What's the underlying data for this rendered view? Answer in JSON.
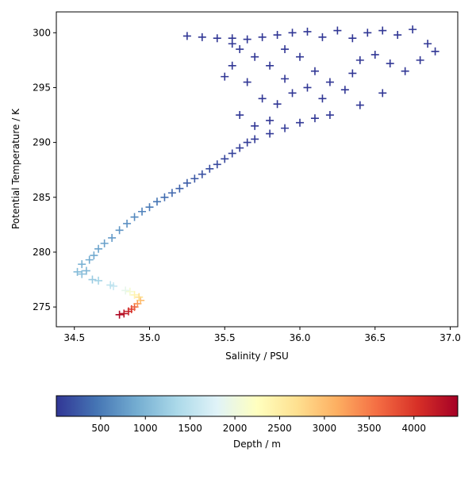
{
  "chart_data": {
    "type": "scatter",
    "marker": "+",
    "colormap": "RdYlBu_r",
    "xlabel": "Salinity / PSU",
    "ylabel": "Potential Temperature / K",
    "colorbar_label": "Depth / m",
    "xlim": [
      34.38,
      37.05
    ],
    "ylim": [
      273.2,
      301.9
    ],
    "clim": [
      5,
      4490
    ],
    "xticks": [
      34.5,
      {
        "value": 35,
        "label": "35.0"
      },
      35.5,
      {
        "value": 36,
        "label": "36.0"
      },
      36.5,
      {
        "value": 37,
        "label": "37.0"
      }
    ],
    "yticks": [
      275,
      280,
      285,
      290,
      295,
      300
    ],
    "cticks": [
      500,
      1000,
      1500,
      2000,
      2500,
      3000,
      3500,
      4000
    ],
    "x": [
      34.8,
      34.83,
      34.86,
      34.88,
      34.9,
      34.92,
      34.94,
      34.93,
      34.9,
      34.87,
      34.84,
      34.76,
      34.74,
      34.66,
      34.62,
      34.55,
      34.52,
      34.58,
      34.55,
      34.6,
      34.63,
      34.66,
      34.7,
      34.75,
      34.8,
      34.85,
      34.9,
      34.95,
      35.0,
      35.05,
      35.1,
      35.15,
      35.2,
      35.25,
      35.3,
      35.35,
      35.4,
      35.45,
      35.5,
      35.55,
      35.6,
      35.65,
      35.7,
      35.8,
      35.9,
      36.0,
      36.1,
      36.2,
      35.25,
      35.35,
      35.45,
      35.55,
      35.65,
      35.75,
      35.85,
      35.95,
      36.05,
      36.15,
      36.25,
      36.35,
      36.45,
      36.55,
      36.65,
      36.75,
      36.85,
      36.9,
      36.8,
      36.7,
      36.6,
      36.5,
      36.4,
      36.35,
      36.3,
      36.2,
      36.1,
      36.0,
      35.9,
      35.8,
      35.7,
      35.6,
      35.55,
      35.5,
      35.65,
      35.75,
      35.85,
      35.95,
      36.05,
      36.15,
      35.6,
      35.7,
      35.8,
      36.4,
      36.55,
      35.9,
      35.55
    ],
    "y": [
      274.3,
      274.4,
      274.6,
      274.8,
      275.0,
      275.3,
      275.6,
      275.9,
      276.1,
      276.4,
      276.5,
      276.9,
      277.0,
      277.4,
      277.5,
      278.0,
      278.2,
      278.3,
      278.9,
      279.3,
      279.7,
      280.3,
      280.8,
      281.3,
      282.0,
      282.6,
      283.2,
      283.7,
      284.1,
      284.6,
      285.0,
      285.4,
      285.8,
      286.3,
      286.7,
      287.1,
      287.6,
      288.0,
      288.5,
      289.0,
      289.5,
      290.0,
      290.3,
      290.8,
      291.3,
      291.8,
      292.2,
      292.5,
      299.7,
      299.6,
      299.5,
      299.5,
      299.4,
      299.6,
      299.8,
      300.0,
      300.1,
      299.6,
      300.2,
      299.5,
      300.0,
      300.2,
      299.8,
      300.3,
      299.0,
      298.3,
      297.5,
      296.5,
      297.2,
      298.0,
      297.5,
      296.3,
      294.8,
      295.5,
      296.5,
      297.8,
      298.5,
      297.0,
      297.8,
      298.5,
      297.0,
      296.0,
      295.5,
      294.0,
      293.5,
      294.5,
      295.0,
      294.0,
      292.5,
      291.5,
      292.0,
      293.4,
      294.5,
      295.8,
      299.0
    ],
    "color_values": [
      4400,
      4300,
      4200,
      4000,
      3700,
      3300,
      3000,
      2700,
      2400,
      2100,
      1900,
      1600,
      1500,
      1300,
      1200,
      1100,
      1050,
      1000,
      950,
      900,
      870,
      830,
      800,
      760,
      720,
      680,
      620,
      560,
      500,
      450,
      400,
      360,
      320,
      280,
      240,
      200,
      170,
      140,
      110,
      90,
      70,
      50,
      40,
      30,
      30,
      25,
      20,
      20,
      10,
      10,
      10,
      10,
      10,
      10,
      10,
      10,
      10,
      10,
      10,
      10,
      10,
      10,
      10,
      10,
      10,
      10,
      10,
      10,
      10,
      10,
      10,
      10,
      10,
      10,
      10,
      10,
      10,
      10,
      10,
      10,
      10,
      10,
      10,
      10,
      10,
      10,
      10,
      10,
      10,
      10,
      10,
      10,
      10,
      10,
      10
    ]
  }
}
